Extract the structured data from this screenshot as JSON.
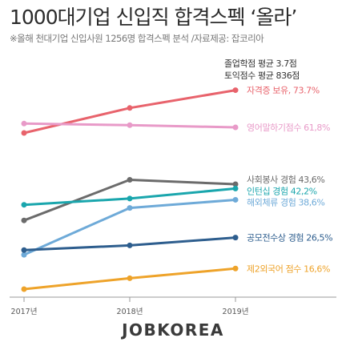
{
  "title": "1000대기업 신입직 합격스펙 ‘올라’",
  "subtitle": "※올해 천대기업 신입사원 1256명 합격스펙 분석 /자료제공: 잡코리아",
  "note": [
    "졸업학점 평균 3.7점",
    "토익점수 평균 836점"
  ],
  "brand": "JOBKOREA",
  "chart_data": {
    "type": "line",
    "categories": [
      "2017년",
      "2018년",
      "2019년"
    ],
    "series": [
      {
        "name": "자격증 보유, 73.7%",
        "values": [
          60,
          68,
          73.7
        ],
        "color": "#e8636c"
      },
      {
        "name": "영어말하기점수 61,8%",
        "values": [
          63,
          62.5,
          61.8
        ],
        "color": "#e89ac8"
      },
      {
        "name": "사회봉사 경험 43,6%",
        "values": [
          32,
          45,
          43.6
        ],
        "color": "#6b6b6b"
      },
      {
        "name": "인턴십 경험 42,2%",
        "values": [
          37,
          39,
          42.2
        ],
        "color": "#1aa6ad"
      },
      {
        "name": "해외체류 경험 38,6%",
        "values": [
          21,
          36,
          38.6
        ],
        "color": "#6eaad8"
      },
      {
        "name": "공모전수상 경험 26,5%",
        "values": [
          22.5,
          24,
          26.5
        ],
        "color": "#2e5e8e"
      },
      {
        "name": "제2외국어 점수 16,6%",
        "values": [
          10,
          13.5,
          16.6
        ],
        "color": "#eea32a"
      }
    ],
    "grid": false,
    "legend": "direct-labels-right"
  }
}
